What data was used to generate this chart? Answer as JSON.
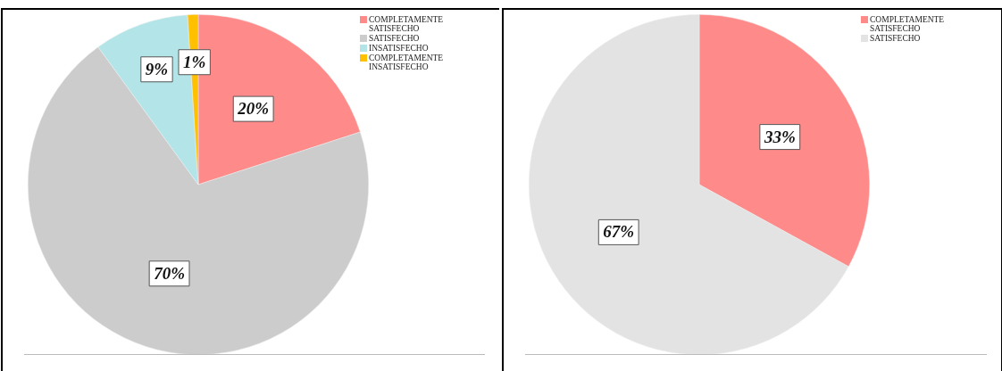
{
  "chart_data": [
    {
      "type": "pie",
      "categories": [
        "COMPLETAMENTE SATISFECHO",
        "SATISFECHO",
        "INSATISFECHO",
        "COMPLETAMENTE INSATISFECHO"
      ],
      "values": [
        20,
        70,
        9,
        1
      ],
      "colors": [
        "#ff8a8a",
        "#cccccc",
        "#b3e5e8",
        "#ffc000"
      ],
      "value_labels": [
        "20%",
        "70%",
        "9%",
        "1%"
      ],
      "legend": "top right"
    },
    {
      "type": "pie",
      "categories": [
        "COMPLETAMENTE SATISFECHO",
        "SATISFECHO"
      ],
      "values": [
        33,
        67
      ],
      "colors": [
        "#ff8a8a",
        "#e3e3e3"
      ],
      "value_labels": [
        "33%",
        "67%"
      ],
      "legend": "top right"
    }
  ]
}
